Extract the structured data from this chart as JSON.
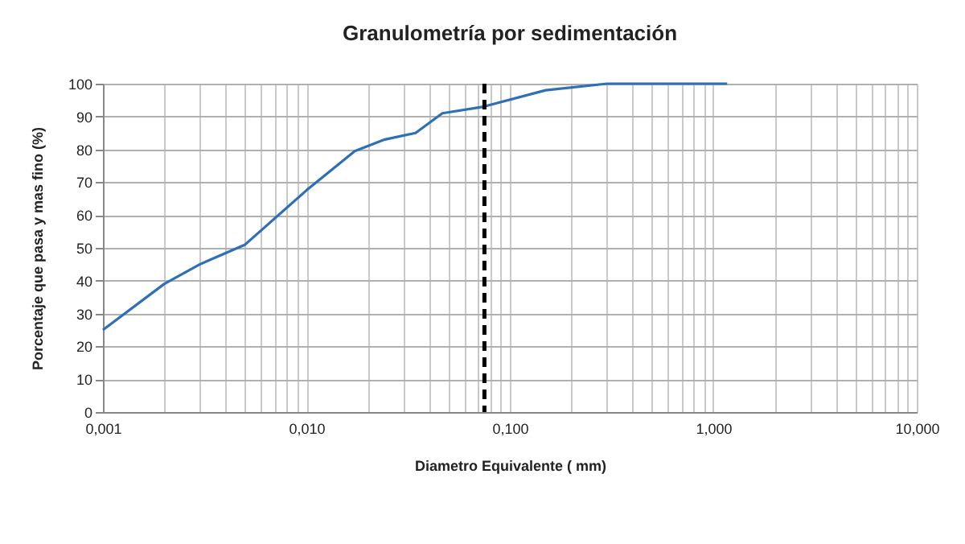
{
  "chart_data": {
    "type": "line",
    "title": "Granulometría por sedimentación",
    "xlabel": "Diametro Equivalente  ( mm)",
    "ylabel": "Porcentaje que pasa y mas fino  (%)",
    "x": [
      0.001,
      0.002,
      0.003,
      0.005,
      0.01,
      0.0173,
      0.0243,
      0.0344,
      0.0466,
      0.0743,
      0.15,
      0.3,
      1.17
    ],
    "series": [
      {
        "color": "#2e6fb5",
        "values": [
          25,
          39,
          45,
          51,
          67.5,
          79.5,
          83,
          85,
          91,
          93,
          98,
          100,
          100
        ]
      }
    ],
    "log": "x",
    "xlim": [
      0.001,
      10
    ],
    "ylim": [
      0,
      100
    ],
    "xticks": [
      {
        "value": 0.001,
        "label": "0,001"
      },
      {
        "value": 0.01,
        "label": "0,010"
      },
      {
        "value": 0.1,
        "label": "0,100"
      },
      {
        "value": 1,
        "label": "1,000"
      },
      {
        "value": 10,
        "label": "10,000"
      }
    ],
    "yticks": [
      0,
      10,
      20,
      30,
      40,
      50,
      60,
      70,
      80,
      90,
      100
    ],
    "grid": true,
    "marker": "none",
    "line_style": "solid",
    "ref_lines": [
      {
        "axis": "x",
        "value": 0.075,
        "color": "#000000",
        "line_style": "dashed"
      }
    ]
  }
}
